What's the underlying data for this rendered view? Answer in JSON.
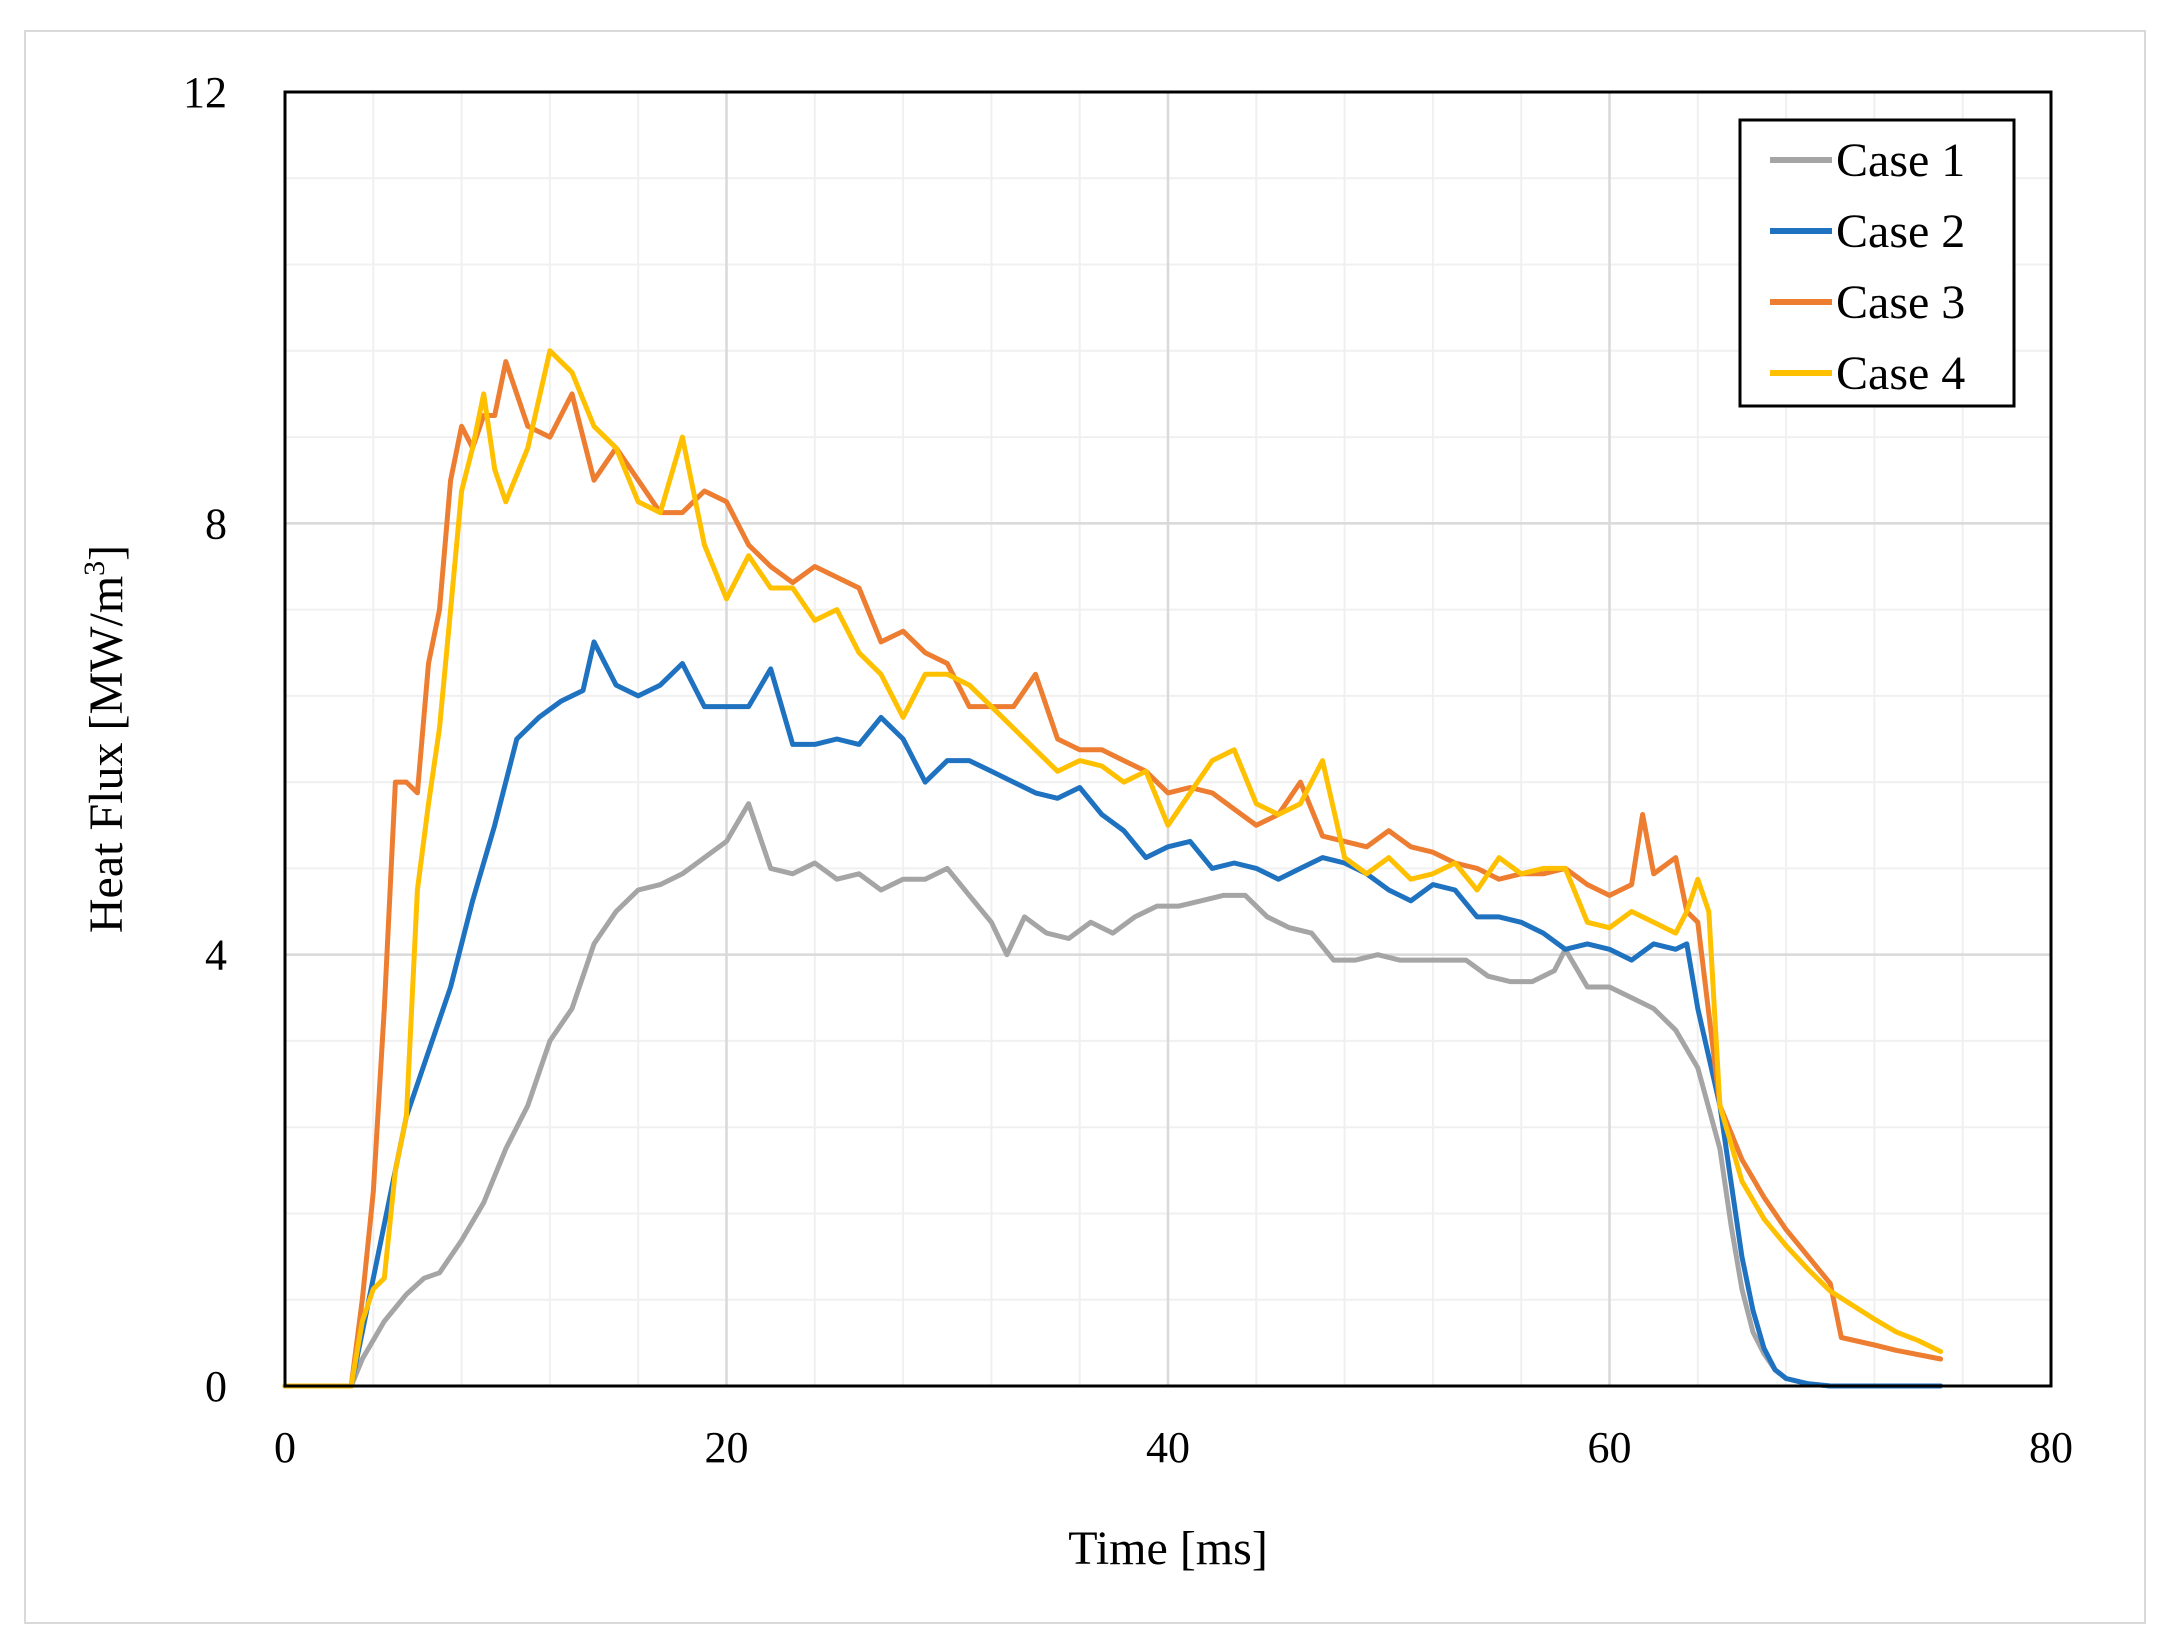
{
  "chart_data": {
    "type": "line",
    "title": "",
    "xlabel": "Time [ms]",
    "ylabel": "Heat Flux [MW/m",
    "ylabel_sup": "3",
    "ylabel_close": "]",
    "xlim": [
      0,
      80
    ],
    "ylim": [
      0,
      12
    ],
    "xticks": [
      0,
      20,
      40,
      60,
      80
    ],
    "yticks": [
      0,
      4,
      8,
      12
    ],
    "x_minor_step": 4,
    "y_minor_step": 0.8,
    "grid": true,
    "legend_position": "top-right",
    "series": [
      {
        "name": "Case 1",
        "color": "#a5a5a5",
        "points": [
          [
            0,
            0
          ],
          [
            3,
            0
          ],
          [
            3.5,
            0.25
          ],
          [
            4.5,
            0.6
          ],
          [
            5.5,
            0.85
          ],
          [
            6.3,
            1.0
          ],
          [
            7,
            1.05
          ],
          [
            8,
            1.35
          ],
          [
            9,
            1.7
          ],
          [
            10,
            2.2
          ],
          [
            11,
            2.6
          ],
          [
            12,
            3.2
          ],
          [
            13,
            3.5
          ],
          [
            14,
            4.1
          ],
          [
            15,
            4.4
          ],
          [
            16,
            4.6
          ],
          [
            17,
            4.65
          ],
          [
            18,
            4.75
          ],
          [
            19,
            4.9
          ],
          [
            20,
            5.05
          ],
          [
            21,
            5.4
          ],
          [
            22,
            4.8
          ],
          [
            23,
            4.75
          ],
          [
            24,
            4.85
          ],
          [
            25,
            4.7
          ],
          [
            26,
            4.75
          ],
          [
            27,
            4.6
          ],
          [
            28,
            4.7
          ],
          [
            29,
            4.7
          ],
          [
            30,
            4.8
          ],
          [
            31,
            4.55
          ],
          [
            32,
            4.3
          ],
          [
            32.7,
            4.0
          ],
          [
            33.5,
            4.35
          ],
          [
            34.5,
            4.2
          ],
          [
            35.5,
            4.15
          ],
          [
            36.5,
            4.3
          ],
          [
            37.5,
            4.2
          ],
          [
            38.5,
            4.35
          ],
          [
            39.5,
            4.45
          ],
          [
            40.5,
            4.45
          ],
          [
            41.5,
            4.5
          ],
          [
            42.5,
            4.55
          ],
          [
            43.5,
            4.55
          ],
          [
            44.5,
            4.35
          ],
          [
            45.5,
            4.25
          ],
          [
            46.5,
            4.2
          ],
          [
            47.5,
            3.95
          ],
          [
            48.5,
            3.95
          ],
          [
            49.5,
            4.0
          ],
          [
            50.5,
            3.95
          ],
          [
            51.5,
            3.95
          ],
          [
            52.5,
            3.95
          ],
          [
            53.5,
            3.95
          ],
          [
            54.5,
            3.8
          ],
          [
            55.5,
            3.75
          ],
          [
            56.5,
            3.75
          ],
          [
            57.5,
            3.85
          ],
          [
            58,
            4.05
          ],
          [
            59,
            3.7
          ],
          [
            60,
            3.7
          ],
          [
            61,
            3.6
          ],
          [
            62,
            3.5
          ],
          [
            63,
            3.3
          ],
          [
            64,
            2.95
          ],
          [
            65,
            2.2
          ],
          [
            65.5,
            1.5
          ],
          [
            66,
            0.9
          ],
          [
            66.5,
            0.5
          ],
          [
            67,
            0.3
          ],
          [
            67.5,
            0.15
          ],
          [
            68,
            0.07
          ],
          [
            69,
            0.02
          ],
          [
            70,
            0.0
          ],
          [
            75,
            0.0
          ]
        ]
      },
      {
        "name": "Case 2",
        "color": "#1f72c0",
        "points": [
          [
            0,
            0
          ],
          [
            3,
            0
          ],
          [
            3.5,
            0.5
          ],
          [
            4.5,
            1.5
          ],
          [
            5.5,
            2.5
          ],
          [
            6.5,
            3.1
          ],
          [
            7.5,
            3.7
          ],
          [
            8.5,
            4.5
          ],
          [
            9.5,
            5.2
          ],
          [
            10.5,
            6.0
          ],
          [
            11.5,
            6.2
          ],
          [
            12.5,
            6.35
          ],
          [
            13.5,
            6.45
          ],
          [
            14,
            6.9
          ],
          [
            15,
            6.5
          ],
          [
            16,
            6.4
          ],
          [
            17,
            6.5
          ],
          [
            18,
            6.7
          ],
          [
            19,
            6.3
          ],
          [
            20,
            6.3
          ],
          [
            21,
            6.3
          ],
          [
            22,
            6.65
          ],
          [
            23,
            5.95
          ],
          [
            24,
            5.95
          ],
          [
            25,
            6.0
          ],
          [
            26,
            5.95
          ],
          [
            27,
            6.2
          ],
          [
            28,
            6.0
          ],
          [
            29,
            5.6
          ],
          [
            30,
            5.8
          ],
          [
            31,
            5.8
          ],
          [
            32,
            5.7
          ],
          [
            33,
            5.6
          ],
          [
            34,
            5.5
          ],
          [
            35,
            5.45
          ],
          [
            36,
            5.55
          ],
          [
            37,
            5.3
          ],
          [
            38,
            5.15
          ],
          [
            39,
            4.9
          ],
          [
            40,
            5.0
          ],
          [
            41,
            5.05
          ],
          [
            42,
            4.8
          ],
          [
            43,
            4.85
          ],
          [
            44,
            4.8
          ],
          [
            45,
            4.7
          ],
          [
            46,
            4.8
          ],
          [
            47,
            4.9
          ],
          [
            48,
            4.85
          ],
          [
            49,
            4.75
          ],
          [
            50,
            4.6
          ],
          [
            51,
            4.5
          ],
          [
            52,
            4.65
          ],
          [
            53,
            4.6
          ],
          [
            54,
            4.35
          ],
          [
            55,
            4.35
          ],
          [
            56,
            4.3
          ],
          [
            57,
            4.2
          ],
          [
            58,
            4.05
          ],
          [
            59,
            4.1
          ],
          [
            60,
            4.05
          ],
          [
            61,
            3.95
          ],
          [
            62,
            4.1
          ],
          [
            63,
            4.05
          ],
          [
            63.5,
            4.1
          ],
          [
            64,
            3.5
          ],
          [
            65,
            2.6
          ],
          [
            65.5,
            1.9
          ],
          [
            66,
            1.2
          ],
          [
            66.5,
            0.7
          ],
          [
            67,
            0.35
          ],
          [
            67.5,
            0.15
          ],
          [
            68,
            0.07
          ],
          [
            69,
            0.02
          ],
          [
            70,
            0.0
          ],
          [
            75,
            0.0
          ]
        ]
      },
      {
        "name": "Case 3",
        "color": "#ed7d31",
        "points": [
          [
            0,
            0
          ],
          [
            3,
            0
          ],
          [
            3.5,
            0.8
          ],
          [
            4,
            1.8
          ],
          [
            4.5,
            3.5
          ],
          [
            5,
            5.6
          ],
          [
            5.5,
            5.6
          ],
          [
            6,
            5.5
          ],
          [
            6.5,
            6.7
          ],
          [
            7,
            7.2
          ],
          [
            7.5,
            8.4
          ],
          [
            8,
            8.9
          ],
          [
            8.5,
            8.7
          ],
          [
            9,
            9.0
          ],
          [
            9.5,
            9.0
          ],
          [
            10,
            9.5
          ],
          [
            11,
            8.9
          ],
          [
            12,
            8.8
          ],
          [
            13,
            9.2
          ],
          [
            14,
            8.4
          ],
          [
            15,
            8.7
          ],
          [
            16,
            8.4
          ],
          [
            17,
            8.1
          ],
          [
            18,
            8.1
          ],
          [
            19,
            8.3
          ],
          [
            20,
            8.2
          ],
          [
            21,
            7.8
          ],
          [
            22,
            7.6
          ],
          [
            23,
            7.45
          ],
          [
            24,
            7.6
          ],
          [
            25,
            7.5
          ],
          [
            26,
            7.4
          ],
          [
            27,
            6.9
          ],
          [
            28,
            7.0
          ],
          [
            29,
            6.8
          ],
          [
            30,
            6.7
          ],
          [
            31,
            6.3
          ],
          [
            32,
            6.3
          ],
          [
            33,
            6.3
          ],
          [
            34,
            6.6
          ],
          [
            35,
            6.0
          ],
          [
            36,
            5.9
          ],
          [
            37,
            5.9
          ],
          [
            38,
            5.8
          ],
          [
            39,
            5.7
          ],
          [
            40,
            5.5
          ],
          [
            41,
            5.55
          ],
          [
            42,
            5.5
          ],
          [
            43,
            5.35
          ],
          [
            44,
            5.2
          ],
          [
            45,
            5.3
          ],
          [
            46,
            5.6
          ],
          [
            47,
            5.1
          ],
          [
            48,
            5.05
          ],
          [
            49,
            5.0
          ],
          [
            50,
            5.15
          ],
          [
            51,
            5.0
          ],
          [
            52,
            4.95
          ],
          [
            53,
            4.85
          ],
          [
            54,
            4.8
          ],
          [
            55,
            4.7
          ],
          [
            56,
            4.75
          ],
          [
            57,
            4.75
          ],
          [
            58,
            4.8
          ],
          [
            59,
            4.65
          ],
          [
            60,
            4.55
          ],
          [
            61,
            4.65
          ],
          [
            61.5,
            5.3
          ],
          [
            62,
            4.75
          ],
          [
            63,
            4.9
          ],
          [
            63.5,
            4.4
          ],
          [
            64,
            4.3
          ],
          [
            65,
            2.6
          ],
          [
            66,
            2.1
          ],
          [
            67,
            1.75
          ],
          [
            68,
            1.45
          ],
          [
            69,
            1.2
          ],
          [
            70,
            0.95
          ],
          [
            70.5,
            0.45
          ],
          [
            72,
            0.38
          ],
          [
            73,
            0.33
          ],
          [
            75,
            0.25
          ]
        ]
      },
      {
        "name": "Case 4",
        "color": "#ffc000",
        "points": [
          [
            0,
            0
          ],
          [
            3,
            0
          ],
          [
            3.5,
            0.6
          ],
          [
            4,
            0.9
          ],
          [
            4.5,
            1.0
          ],
          [
            5,
            2.0
          ],
          [
            5.5,
            2.5
          ],
          [
            6,
            4.6
          ],
          [
            6.5,
            5.4
          ],
          [
            7,
            6.1
          ],
          [
            7.5,
            7.2
          ],
          [
            8,
            8.3
          ],
          [
            8.5,
            8.7
          ],
          [
            9,
            9.2
          ],
          [
            9.5,
            8.5
          ],
          [
            10,
            8.2
          ],
          [
            11,
            8.7
          ],
          [
            12,
            9.6
          ],
          [
            13,
            9.4
          ],
          [
            14,
            8.9
          ],
          [
            15,
            8.7
          ],
          [
            16,
            8.2
          ],
          [
            17,
            8.1
          ],
          [
            18,
            8.8
          ],
          [
            19,
            7.8
          ],
          [
            20,
            7.3
          ],
          [
            21,
            7.7
          ],
          [
            22,
            7.4
          ],
          [
            23,
            7.4
          ],
          [
            24,
            7.1
          ],
          [
            25,
            7.2
          ],
          [
            26,
            6.8
          ],
          [
            27,
            6.6
          ],
          [
            28,
            6.2
          ],
          [
            29,
            6.6
          ],
          [
            30,
            6.6
          ],
          [
            31,
            6.5
          ],
          [
            32,
            6.3
          ],
          [
            33,
            6.1
          ],
          [
            34,
            5.9
          ],
          [
            35,
            5.7
          ],
          [
            36,
            5.8
          ],
          [
            37,
            5.75
          ],
          [
            38,
            5.6
          ],
          [
            39,
            5.7
          ],
          [
            40,
            5.2
          ],
          [
            41,
            5.5
          ],
          [
            42,
            5.8
          ],
          [
            43,
            5.9
          ],
          [
            44,
            5.4
          ],
          [
            45,
            5.3
          ],
          [
            46,
            5.4
          ],
          [
            47,
            5.8
          ],
          [
            48,
            4.9
          ],
          [
            49,
            4.75
          ],
          [
            50,
            4.9
          ],
          [
            51,
            4.7
          ],
          [
            52,
            4.75
          ],
          [
            53,
            4.85
          ],
          [
            54,
            4.6
          ],
          [
            55,
            4.9
          ],
          [
            56,
            4.75
          ],
          [
            57,
            4.8
          ],
          [
            58,
            4.8
          ],
          [
            59,
            4.3
          ],
          [
            60,
            4.25
          ],
          [
            61,
            4.4
          ],
          [
            62,
            4.3
          ],
          [
            63,
            4.2
          ],
          [
            63.5,
            4.4
          ],
          [
            64,
            4.7
          ],
          [
            64.5,
            4.4
          ],
          [
            65,
            2.6
          ],
          [
            66,
            1.9
          ],
          [
            67,
            1.55
          ],
          [
            68,
            1.3
          ],
          [
            69,
            1.08
          ],
          [
            70,
            0.88
          ],
          [
            71,
            0.75
          ],
          [
            72,
            0.62
          ],
          [
            73,
            0.5
          ],
          [
            74,
            0.42
          ],
          [
            75,
            0.32
          ]
        ]
      }
    ]
  }
}
